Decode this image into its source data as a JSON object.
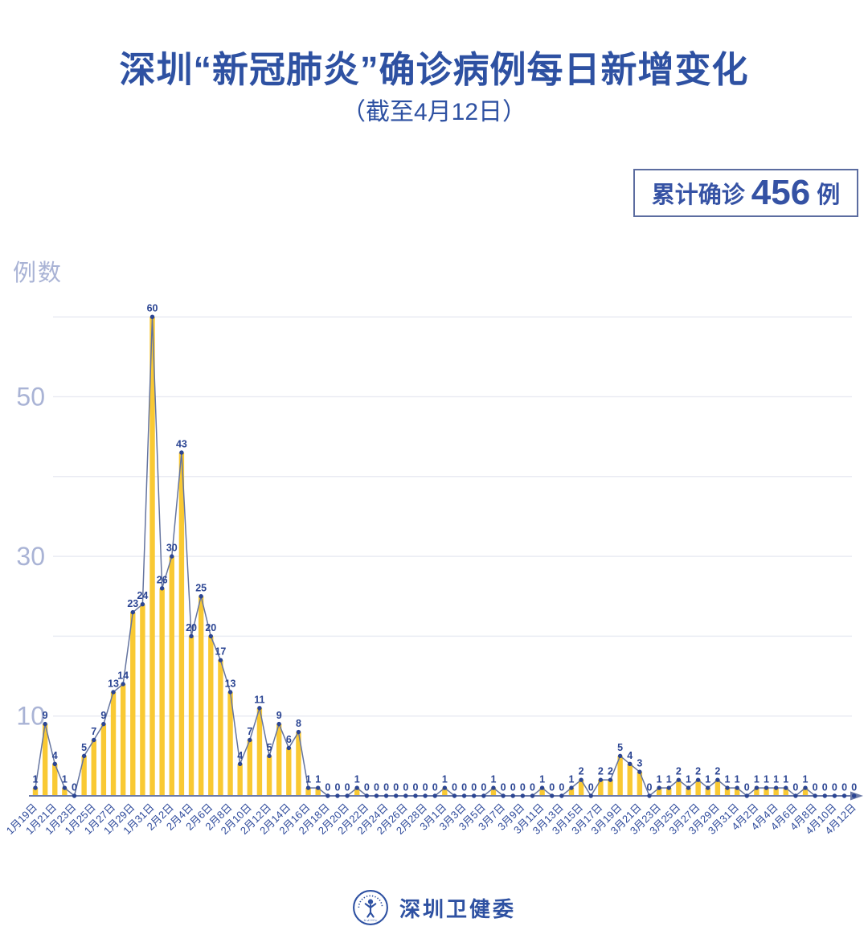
{
  "header": {
    "title": "深圳“新冠肺炎”确诊病例每日新增变化",
    "subtitle": "（截至4月12日）"
  },
  "summary_badge": {
    "prefix": "累计确诊",
    "value": "456",
    "suffix": "例"
  },
  "footer": {
    "org_name": "深圳卫健委",
    "logo": "shenzhen-health-commission-emblem"
  },
  "colors": {
    "title_blue": "#2E51A2",
    "badge_border": "#5C6DA0",
    "badge_text": "#3552A4",
    "bar_yellow": "#F9C933",
    "line_slate": "#64749F",
    "point_navy": "#2B4593",
    "value_label": "#2B4593",
    "x_label": "#2E4A9B",
    "y_tick": "#A9B3D5",
    "gridline": "#E9EBF3",
    "axis": "#6B7AA8",
    "background": "#FFFFFF"
  },
  "chart_data": {
    "type": "bar",
    "title": "深圳“新冠肺炎”确诊病例每日新增变化",
    "subtitle": "（截至4月12日）",
    "xlabel": "",
    "ylabel": "例数",
    "ylim": [
      0,
      60
    ],
    "yticks": [
      10,
      30,
      50
    ],
    "gridlines": [
      10,
      20,
      30,
      40,
      50,
      60
    ],
    "legend": "none",
    "cumulative_total": 456,
    "x_labels": [
      "1月19日",
      "1月21日",
      "1月23日",
      "1月25日",
      "1月27日",
      "1月29日",
      "1月31日",
      "2月2日",
      "2月4日",
      "2月6日",
      "2月8日",
      "2月10日",
      "2月12日",
      "2月14日",
      "2月16日",
      "2月18日",
      "2月20日",
      "2月22日",
      "2月24日",
      "2月26日",
      "2月28日",
      "3月1日",
      "3月3日",
      "3月5日",
      "3月7日",
      "3月9日",
      "3月11日",
      "3月13日",
      "3月15日",
      "3月17日",
      "3月19日",
      "3月21日",
      "3月23日",
      "3月25日",
      "3月27日",
      "3月29日",
      "3月31日",
      "4月2日",
      "4月4日",
      "4月6日",
      "4月8日",
      "4月10日",
      "4月12日"
    ],
    "x_label_step": 2,
    "values": [
      1,
      9,
      4,
      1,
      0,
      5,
      7,
      9,
      13,
      14,
      23,
      24,
      60,
      26,
      30,
      43,
      20,
      25,
      20,
      17,
      13,
      4,
      7,
      11,
      5,
      9,
      6,
      8,
      1,
      1,
      0,
      0,
      0,
      1,
      0,
      0,
      0,
      0,
      0,
      0,
      0,
      0,
      1,
      0,
      0,
      0,
      0,
      1,
      0,
      0,
      0,
      0,
      1,
      0,
      0,
      1,
      2,
      0,
      2,
      2,
      5,
      4,
      3,
      0,
      1,
      1,
      2,
      1,
      2,
      1,
      2,
      1,
      1,
      0,
      1,
      1,
      1,
      1,
      0,
      1,
      0,
      0,
      0,
      0,
      0
    ]
  }
}
